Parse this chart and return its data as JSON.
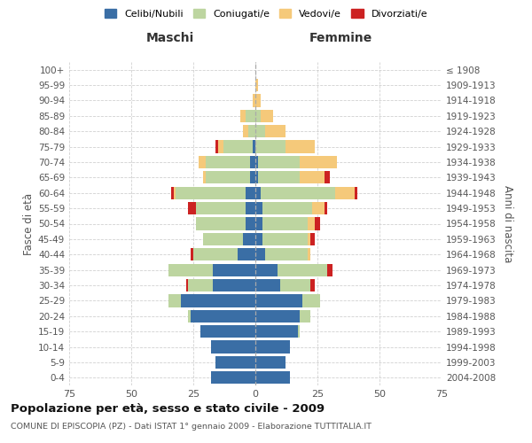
{
  "age_groups": [
    "0-4",
    "5-9",
    "10-14",
    "15-19",
    "20-24",
    "25-29",
    "30-34",
    "35-39",
    "40-44",
    "45-49",
    "50-54",
    "55-59",
    "60-64",
    "65-69",
    "70-74",
    "75-79",
    "80-84",
    "85-89",
    "90-94",
    "95-99",
    "100+"
  ],
  "birth_years": [
    "2004-2008",
    "1999-2003",
    "1994-1998",
    "1989-1993",
    "1984-1988",
    "1979-1983",
    "1974-1978",
    "1969-1973",
    "1964-1968",
    "1959-1963",
    "1954-1958",
    "1949-1953",
    "1944-1948",
    "1939-1943",
    "1934-1938",
    "1929-1933",
    "1924-1928",
    "1919-1923",
    "1914-1918",
    "1909-1913",
    "≤ 1908"
  ],
  "male": {
    "celibi": [
      18,
      16,
      18,
      22,
      26,
      30,
      17,
      17,
      7,
      5,
      4,
      4,
      4,
      2,
      2,
      1,
      0,
      0,
      0,
      0,
      0
    ],
    "coniugati": [
      0,
      0,
      0,
      0,
      1,
      5,
      10,
      18,
      18,
      16,
      20,
      20,
      28,
      18,
      18,
      12,
      3,
      4,
      0,
      0,
      0
    ],
    "vedovi": [
      0,
      0,
      0,
      0,
      0,
      0,
      0,
      0,
      0,
      0,
      0,
      0,
      1,
      1,
      3,
      2,
      2,
      2,
      1,
      0,
      0
    ],
    "divorziati": [
      0,
      0,
      0,
      0,
      0,
      0,
      1,
      0,
      1,
      0,
      0,
      3,
      1,
      0,
      0,
      1,
      0,
      0,
      0,
      0,
      0
    ]
  },
  "female": {
    "nubili": [
      14,
      12,
      14,
      17,
      18,
      19,
      10,
      9,
      4,
      3,
      3,
      3,
      2,
      1,
      1,
      0,
      0,
      0,
      0,
      0,
      0
    ],
    "coniugate": [
      0,
      0,
      0,
      1,
      4,
      7,
      12,
      20,
      17,
      18,
      18,
      20,
      30,
      17,
      17,
      12,
      4,
      2,
      0,
      0,
      0
    ],
    "vedove": [
      0,
      0,
      0,
      0,
      0,
      0,
      0,
      0,
      1,
      1,
      3,
      5,
      8,
      10,
      15,
      12,
      8,
      5,
      2,
      1,
      0
    ],
    "divorziate": [
      0,
      0,
      0,
      0,
      0,
      0,
      2,
      2,
      0,
      2,
      2,
      1,
      1,
      2,
      0,
      0,
      0,
      0,
      0,
      0,
      0
    ]
  },
  "colors": {
    "celibi": "#3a6ea5",
    "coniugati": "#bdd5a0",
    "vedovi": "#f5c97a",
    "divorziati": "#cc2222"
  },
  "title": "Popolazione per età, sesso e stato civile - 2009",
  "subtitle": "COMUNE DI EPISCOPIA (PZ) - Dati ISTAT 1° gennaio 2009 - Elaborazione TUTTITALIA.IT",
  "xlabel_left": "Maschi",
  "xlabel_right": "Femmine",
  "ylabel_left": "Fasce di età",
  "ylabel_right": "Anni di nascita",
  "xlim": 75,
  "background_color": "#ffffff",
  "grid_color": "#cccccc"
}
